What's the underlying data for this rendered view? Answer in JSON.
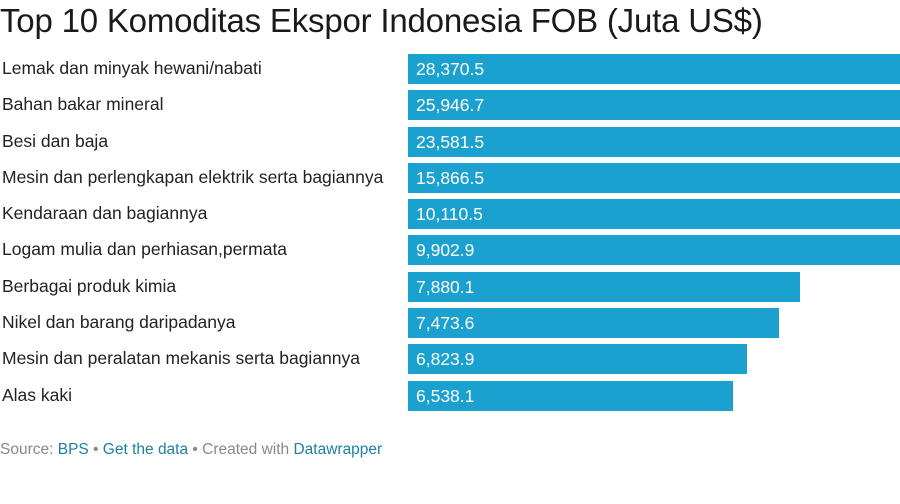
{
  "title": "Top 10 Komoditas Ekspor Indonesia FOB (Juta US$)",
  "footer": {
    "source_prefix": "Source: ",
    "source_link": "BPS",
    "sep1": " • ",
    "get_data": "Get the data",
    "sep2": " • Created with ",
    "datawrapper": "Datawrapper"
  },
  "colors": {
    "bar": "#1aa1cf",
    "link": "#1d81a2",
    "text": "#222222",
    "muted": "#888888"
  },
  "chart_data": {
    "type": "bar",
    "orientation": "horizontal",
    "title": "Top 10 Komoditas Ekspor Indonesia FOB (Juta US$)",
    "xlabel": "",
    "ylabel": "",
    "scale_max_visible": 9902.9,
    "categories": [
      "Lemak dan minyak hewani/nabati",
      "Bahan bakar mineral",
      "Besi dan baja",
      "Mesin dan perlengkapan elektrik serta bagiannya",
      "Kendaraan dan bagiannya",
      "Logam mulia dan perhiasan,permata",
      "Berbagai produk kimia",
      "Nikel dan barang daripadanya",
      "Mesin dan peralatan mekanis serta bagiannya",
      "Alas kaki"
    ],
    "values": [
      28370.5,
      25946.7,
      23581.5,
      15866.5,
      10110.5,
      9902.9,
      7880.1,
      7473.6,
      6823.9,
      6538.1
    ],
    "value_labels": [
      "28,370.5",
      "25,946.7",
      "23,581.5",
      "15,866.5",
      "10,110.5",
      "9,902.9",
      "7,880.1",
      "7,473.6",
      "6,823.9",
      "6,538.1"
    ],
    "source": "BPS"
  }
}
